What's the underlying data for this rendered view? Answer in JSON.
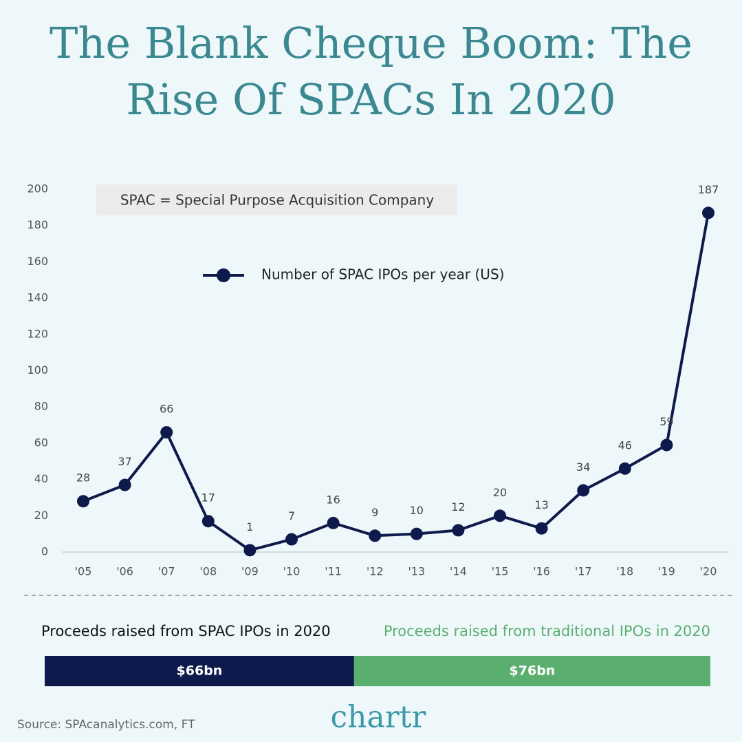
{
  "title": "The Blank Cheque Boom: The Rise Of SPACs In 2020",
  "chart_data": [
    {
      "type": "line",
      "annotation": "SPAC = Special Purpose Acquisition Company",
      "categories": [
        "'05",
        "'06",
        "'07",
        "'08",
        "'09",
        "'10",
        "'11",
        "'12",
        "'13",
        "'14",
        "'15",
        "'16",
        "'17",
        "'18",
        "'19",
        "'20"
      ],
      "series": [
        {
          "name": "Number of SPAC IPOs per year (US)",
          "color": "#0e1a4c",
          "values": [
            28,
            37,
            66,
            17,
            1,
            7,
            16,
            9,
            10,
            12,
            20,
            13,
            34,
            46,
            59,
            187
          ]
        }
      ],
      "ylim": [
        0,
        200
      ],
      "yticks": [
        0,
        20,
        40,
        60,
        80,
        100,
        120,
        140,
        160,
        180,
        200
      ],
      "legend": "top",
      "data_labels": true
    },
    {
      "type": "stacked-bar",
      "series": [
        {
          "name": "Proceeds raised from SPAC IPOs in 2020",
          "color": "#0e1a4c",
          "values": [
            66
          ],
          "value_labels": [
            "$66bn"
          ]
        },
        {
          "name": "Proceeds raised from traditional IPOs in 2020",
          "color": "#5aae6e",
          "values": [
            76
          ],
          "value_labels": [
            "$76bn"
          ]
        }
      ],
      "xlim": [
        0,
        142
      ]
    }
  ],
  "source": "Source: SPAcanalytics.com, FT",
  "logo": "chartr"
}
